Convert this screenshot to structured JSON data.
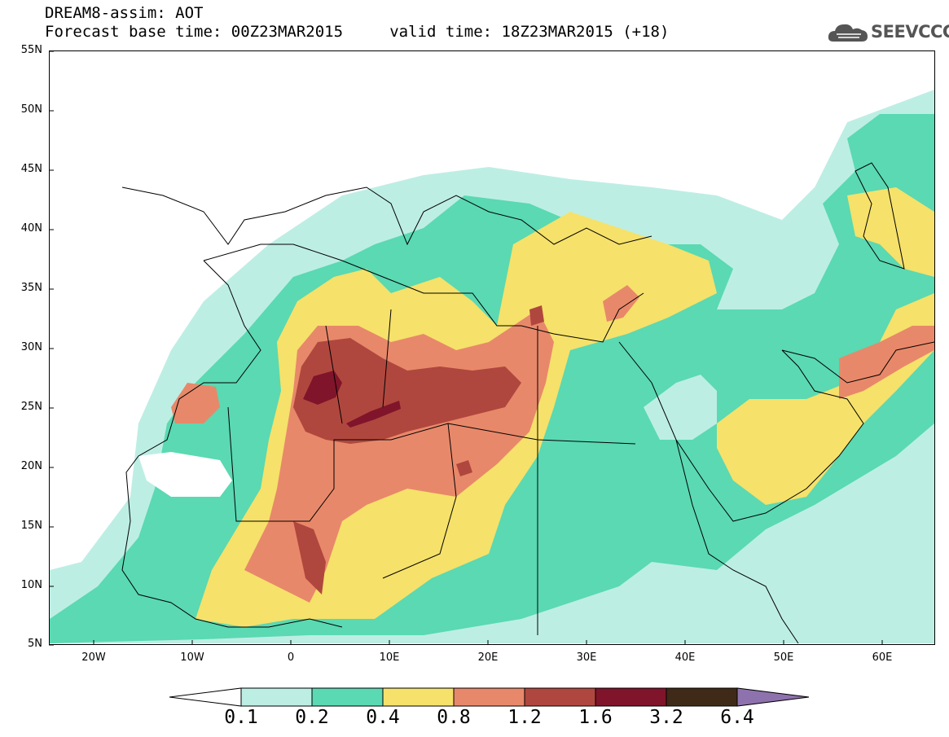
{
  "title": {
    "line1": "DREAM8-assim: AOT",
    "line2": "Forecast base time: 00Z23MAR2015     valid time: 18Z23MAR2015 (+18)"
  },
  "logo": {
    "text": "SEEVCCC",
    "icon": "cloud-icon",
    "color": "#555555"
  },
  "map": {
    "lon_range": [
      -25,
      65
    ],
    "lat_range": [
      5,
      55
    ],
    "lat_labels": [
      "55N",
      "50N",
      "45N",
      "40N",
      "35N",
      "30N",
      "25N",
      "20N",
      "15N",
      "10N",
      "5N"
    ],
    "lon_labels": [
      "20W",
      "10W",
      "0",
      "10E",
      "20E",
      "30E",
      "40E",
      "50E",
      "60E"
    ]
  },
  "colorbar": {
    "levels": [
      "0.1",
      "0.2",
      "0.4",
      "0.8",
      "1.2",
      "1.6",
      "3.2",
      "6.4"
    ],
    "colors": [
      "#bdeee4",
      "#5ad9b2",
      "#f6e16a",
      "#e8886a",
      "#b0473e",
      "#80142a",
      "#3f2a17"
    ],
    "under_color": "#ffffff",
    "over_color": "#8e72ad"
  }
}
